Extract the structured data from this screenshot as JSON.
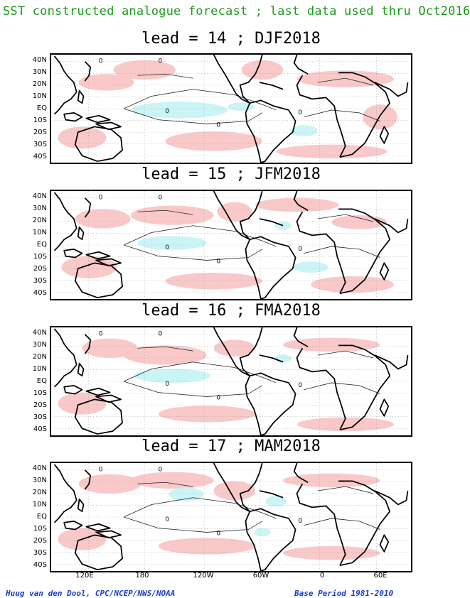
{
  "header": {
    "title": "SST constructed analogue forecast ; last data used thru Oct2016"
  },
  "panels": [
    {
      "title": "lead = 14 ; DJF2018"
    },
    {
      "title": "lead = 15 ; JFM2018"
    },
    {
      "title": "lead = 16 ; FMA2018"
    },
    {
      "title": "lead = 17 ; MAM2018"
    }
  ],
  "latitude_labels": [
    "40N",
    "30N",
    "20N",
    "10N",
    "EQ",
    "10S",
    "20S",
    "30S",
    "40S"
  ],
  "longitude_labels": [
    "120E",
    "180",
    "120W",
    "60W",
    "0",
    "60E"
  ],
  "contour_label": "0",
  "footer": {
    "left": "Huug van den Dool, CPC/NCEP/NWS/NOAA",
    "right": "Base Period 1981-2010"
  },
  "colors": {
    "warm_anomaly": "#f9c6c6",
    "cool_anomaly": "#c7f3f5",
    "land_outline": "#000000",
    "header_text": "#1a9a1a",
    "footer_text": "#1a3fd0"
  }
}
